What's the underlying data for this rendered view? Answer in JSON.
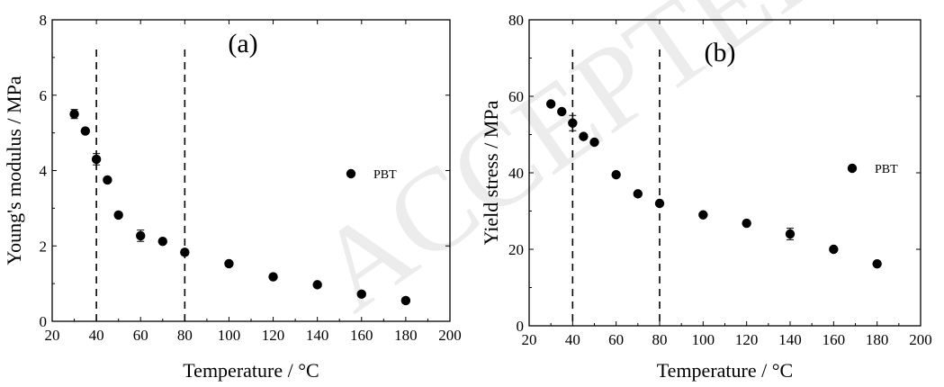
{
  "chart_data": [
    {
      "type": "scatter",
      "panel_label": "(a)",
      "xlabel": "Temperature / °C",
      "ylabel": "Young's modulus / MPa",
      "xlim": [
        20,
        200
      ],
      "ylim": [
        0,
        8
      ],
      "xticks": [
        20,
        40,
        60,
        80,
        100,
        120,
        140,
        160,
        180,
        200
      ],
      "yticks": [
        0,
        2,
        4,
        6,
        8
      ],
      "reference_lines_x": [
        40,
        80
      ],
      "legend": "PBT",
      "legend_placement": "middle-right",
      "grid": false,
      "series": [
        {
          "name": "PBT",
          "x": [
            30,
            35,
            40,
            45,
            50,
            60,
            70,
            80,
            100,
            120,
            140,
            160,
            180
          ],
          "y": [
            5.5,
            5.05,
            4.3,
            3.75,
            2.82,
            2.27,
            2.12,
            1.83,
            1.53,
            1.18,
            0.97,
            0.72,
            0.55
          ],
          "error": [
            0.12,
            0.0,
            0.15,
            0.0,
            0.0,
            0.15,
            0.0,
            0.08,
            0.0,
            0.0,
            0.0,
            0.0,
            0.0
          ]
        }
      ]
    },
    {
      "type": "scatter",
      "panel_label": "(b)",
      "xlabel": "Temperature / °C",
      "ylabel": "Yield stress / MPa",
      "xlim": [
        20,
        200
      ],
      "ylim": [
        0,
        80
      ],
      "xticks": [
        20,
        40,
        60,
        80,
        100,
        120,
        140,
        160,
        180,
        200
      ],
      "yticks": [
        0,
        20,
        40,
        60,
        80
      ],
      "reference_lines_x": [
        40,
        80
      ],
      "legend": "PBT",
      "legend_placement": "middle-right",
      "grid": false,
      "series": [
        {
          "name": "PBT",
          "x": [
            30,
            35,
            40,
            45,
            50,
            60,
            70,
            80,
            100,
            120,
            140,
            160,
            180
          ],
          "y": [
            58,
            56,
            53,
            49.5,
            48,
            39.5,
            34.5,
            32,
            29,
            26.8,
            24,
            20,
            16.2
          ],
          "error": [
            0.0,
            0.0,
            2.0,
            0.0,
            0.0,
            0.0,
            0.0,
            0.0,
            0.0,
            0.0,
            1.5,
            0.0,
            0.0
          ]
        }
      ]
    }
  ]
}
